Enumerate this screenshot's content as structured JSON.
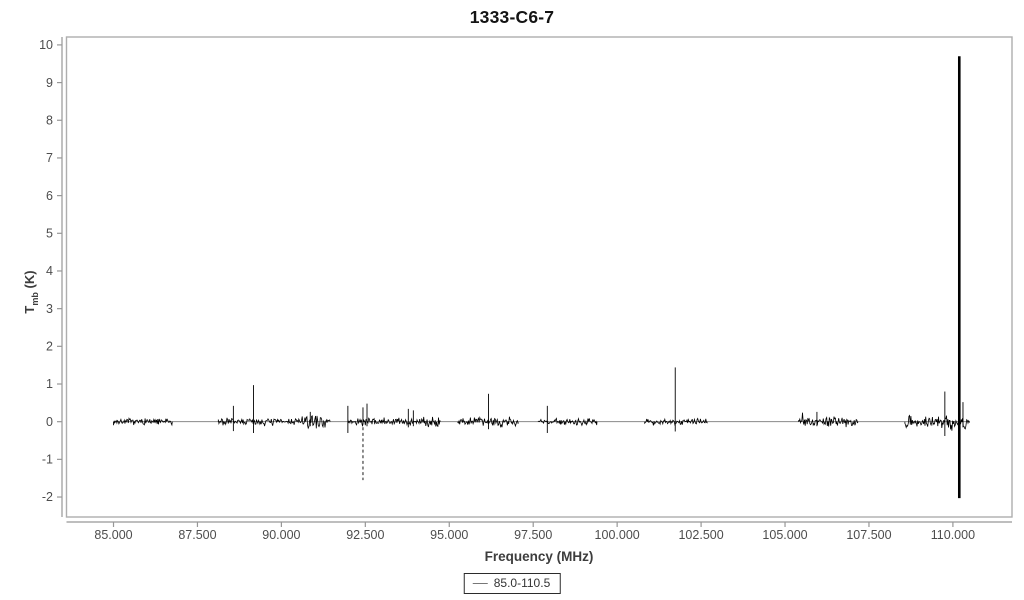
{
  "window": {
    "title": "1333-C6-7"
  },
  "chart_data": {
    "type": "line",
    "title": "1333-C6-7",
    "xlabel": "Frequency (MHz)",
    "ylabel": {
      "symbol": "T",
      "subscript": "mb",
      "unit": " (K)"
    },
    "grid": false,
    "x_axis": {
      "min": 83.6,
      "max": 111.76,
      "tick_values": [
        85,
        87.5,
        90,
        92.5,
        95,
        97.5,
        100,
        102.5,
        105,
        107.5,
        110
      ],
      "tick_labels": [
        "85.000",
        "87.500",
        "90.000",
        "92.500",
        "95.000",
        "97.500",
        "100.000",
        "102.500",
        "105.000",
        "107.500",
        "110.000"
      ]
    },
    "y_axis": {
      "min": -2.53,
      "max": 10.21,
      "tick_values": [
        -2,
        -1,
        0,
        1,
        2,
        3,
        4,
        5,
        6,
        7,
        8,
        9,
        10
      ],
      "tick_labels": [
        "-2",
        "-1",
        "0",
        "1",
        "2",
        "3",
        "4",
        "5",
        "6",
        "7",
        "8",
        "9",
        "10"
      ]
    },
    "legend": {
      "label": "85.0-110.5",
      "position": "bottom-center"
    },
    "series": [
      {
        "name": "85.0-110.5",
        "baseline_value": 0,
        "range": [
          85.0,
          110.5
        ],
        "noise_segments": [
          {
            "from": 85.0,
            "to": 86.75,
            "amp": 0.06
          },
          {
            "from": 88.12,
            "to": 91.45,
            "amp": 0.07
          },
          {
            "from": 91.98,
            "to": 94.73,
            "amp": 0.07
          },
          {
            "from": 95.25,
            "to": 97.05,
            "amp": 0.08
          },
          {
            "from": 97.65,
            "to": 99.4,
            "amp": 0.06
          },
          {
            "from": 100.82,
            "to": 102.68,
            "amp": 0.06
          },
          {
            "from": 105.4,
            "to": 107.17,
            "amp": 0.09
          },
          {
            "from": 108.57,
            "to": 110.5,
            "amp": 0.11
          }
        ],
        "noise_bursts": [
          {
            "from": 90.3,
            "to": 91.45,
            "amp": 0.11
          },
          {
            "from": 94.1,
            "to": 94.73,
            "amp": 0.1
          },
          {
            "from": 96.45,
            "to": 97.05,
            "amp": 0.11
          },
          {
            "from": 109.9,
            "to": 110.42,
            "amp": 0.18
          }
        ],
        "spikes": [
          {
            "freq": 88.57,
            "peak": 0.42,
            "trough": -0.25
          },
          {
            "freq": 89.17,
            "peak": 0.97,
            "trough": -0.3
          },
          {
            "freq": 90.86,
            "peak": 0.26,
            "trough": -0.12
          },
          {
            "freq": 91.98,
            "peak": 0.42,
            "trough": -0.3
          },
          {
            "freq": 92.43,
            "peak": 0.38,
            "trough": -1.55,
            "trough_dashed": true
          },
          {
            "freq": 92.55,
            "peak": 0.48,
            "trough": -0.12
          },
          {
            "freq": 93.78,
            "peak": 0.34,
            "trough": -0.15
          },
          {
            "freq": 93.93,
            "peak": 0.3,
            "trough": -0.12
          },
          {
            "freq": 96.17,
            "peak": 0.74,
            "trough": -0.2
          },
          {
            "freq": 97.92,
            "peak": 0.42,
            "trough": -0.3
          },
          {
            "freq": 101.73,
            "peak": 1.44,
            "trough": -0.26
          },
          {
            "freq": 105.95,
            "peak": 0.26,
            "trough": -0.12
          },
          {
            "freq": 109.76,
            "peak": 0.8,
            "trough": -0.38
          },
          {
            "freq": 110.19,
            "peak": 9.7,
            "trough": -2.03,
            "thick": true
          },
          {
            "freq": 110.3,
            "peak": 0.52,
            "trough": -0.15
          }
        ]
      }
    ],
    "colors": {
      "trace": "#000000",
      "baseline_line": "#8a8a8a",
      "frame": "#aeaeae",
      "axis": "#979797",
      "tick_label": "#4d4d4d",
      "axis_label": "#3d3d3d",
      "title": "#141414",
      "legend_border": "#2b2b2b",
      "legend_text": "#333333",
      "background": "#ffffff"
    }
  }
}
